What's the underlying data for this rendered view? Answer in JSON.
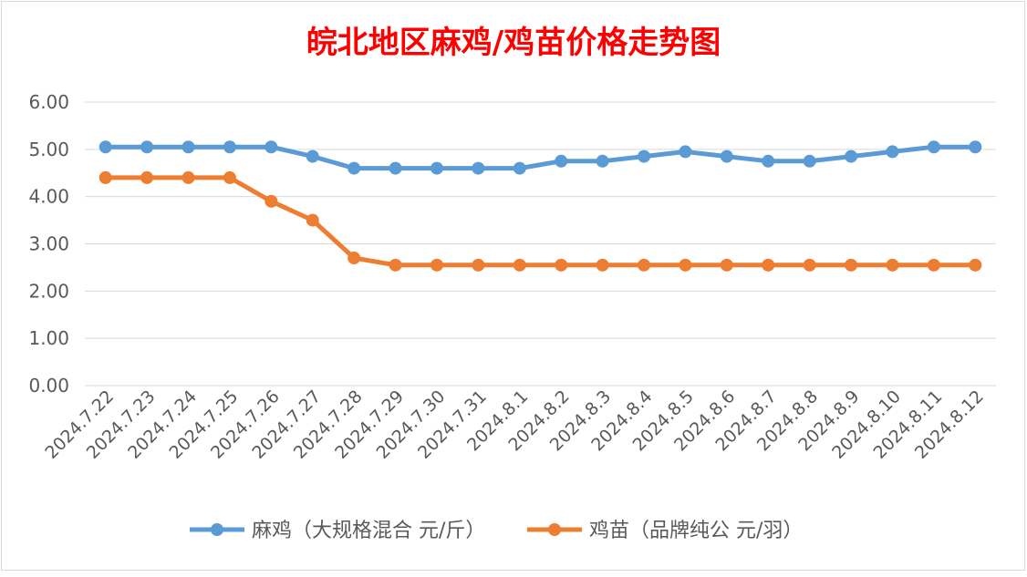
{
  "chart_data": {
    "type": "line",
    "title": "皖北地区麻鸡/鸡苗价格走势图",
    "xlabel": "",
    "ylabel": "",
    "ylim": [
      0,
      6
    ],
    "yticks": [
      "0.00",
      "1.00",
      "2.00",
      "3.00",
      "4.00",
      "5.00",
      "6.00"
    ],
    "grid": true,
    "legend_position": "bottom",
    "categories": [
      "2024.7.22",
      "2024.7.23",
      "2024.7.24",
      "2024.7.25",
      "2024.7.26",
      "2024.7.27",
      "2024.7.28",
      "2024.7.29",
      "2024.7.30",
      "2024.7.31",
      "2024.8.1",
      "2024.8.2",
      "2024.8.3",
      "2024.8.4",
      "2024.8.5",
      "2024.8.6",
      "2024.8.7",
      "2024.8.8",
      "2024.8.9",
      "2024.8.10",
      "2024.8.11",
      "2024.8.12"
    ],
    "series": [
      {
        "name": "麻鸡（大规格混合 元/斤）",
        "color": "#5B9BD5",
        "values": [
          5.05,
          5.05,
          5.05,
          5.05,
          5.05,
          4.85,
          4.6,
          4.6,
          4.6,
          4.6,
          4.6,
          4.75,
          4.75,
          4.85,
          4.95,
          4.85,
          4.75,
          4.75,
          4.85,
          4.95,
          5.05,
          5.05
        ]
      },
      {
        "name": "鸡苗（品牌纯公 元/羽）",
        "color": "#ED7D31",
        "values": [
          4.4,
          4.4,
          4.4,
          4.4,
          3.9,
          3.5,
          2.7,
          2.55,
          2.55,
          2.55,
          2.55,
          2.55,
          2.55,
          2.55,
          2.55,
          2.55,
          2.55,
          2.55,
          2.55,
          2.55,
          2.55,
          2.55
        ]
      }
    ]
  }
}
